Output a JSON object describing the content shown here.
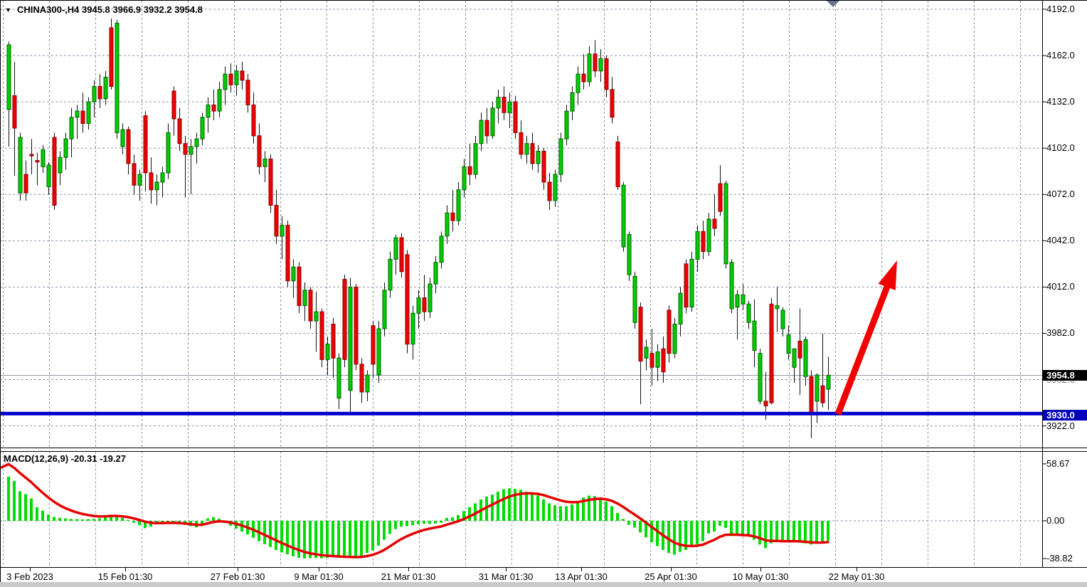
{
  "header": {
    "title_text": "CHINA300-,H4  3945.8 3966.9 3932.2 3954.8",
    "collapse_marker": "▼"
  },
  "price_axis": {
    "labels": [
      "4192.0",
      "4162.0",
      "4132.0",
      "4102.0",
      "4072.0",
      "4042.0",
      "4012.0",
      "3982.0",
      "3952.0",
      "3922.0"
    ],
    "current_price_tag": "3954.8",
    "support_price_tag": "3930.0"
  },
  "macd_panel": {
    "label": "MACD(12,26,9) -20.31 -19.27",
    "axis_labels": [
      "58.67",
      "0.00",
      "-38.82"
    ],
    "main_value": -20.31,
    "signal_value": -19.27
  },
  "time_axis": {
    "labels": [
      "3 Feb 2023",
      "15 Feb 01:30",
      "27 Feb 01:30",
      "9 Mar 01:30",
      "21 Mar 01:30",
      "31 Mar 01:30",
      "13 Apr 01:30",
      "25 Apr 01:30",
      "10 May 01:30",
      "22 May 01:30"
    ]
  },
  "colors": {
    "bull": "#00cc00",
    "bull_edge": "#006600",
    "bear": "#f20000",
    "bear_edge": "#8b0000",
    "wick": "#111111",
    "grid": "#8795aa",
    "price_line": "#8e99a3",
    "support_line": "#0000cc",
    "signal_line": "#e60000",
    "histogram": "#00dd00",
    "arrow": "#f10000",
    "tag_current_bg": "#000000",
    "tag_support_bg": "#0000bb",
    "scroll_marker": "#64748b",
    "border": "#000000"
  },
  "chart_data": {
    "type": "candlestick",
    "symbol": "CHINA300-",
    "timeframe": "H4",
    "last_ohlc": {
      "open": 3945.8,
      "high": 3966.9,
      "low": 3932.2,
      "close": 3954.8
    },
    "price_ticks": [
      4192.0,
      4162.0,
      4132.0,
      4102.0,
      4072.0,
      4042.0,
      4012.0,
      3982.0,
      3952.0,
      3922.0
    ],
    "support_level": 3930.0,
    "current_price": 3954.8,
    "annotations": {
      "support_line": "horizontal line at 3930.0",
      "arrow": "bullish projection arrow from support"
    },
    "candles": [
      [
        4127,
        4171,
        4103,
        4169,
        "g"
      ],
      [
        4136,
        4158,
        4084,
        4115,
        "r"
      ],
      [
        4073,
        4112,
        4068,
        4109,
        "g"
      ],
      [
        4085,
        4094,
        4068,
        4073,
        "r"
      ],
      [
        4098,
        4108,
        4085,
        4097,
        "r"
      ],
      [
        4094,
        4099,
        4078,
        4093,
        "r"
      ],
      [
        4090,
        4104,
        4086,
        4101,
        "g"
      ],
      [
        4077,
        4093,
        4072,
        4091,
        "g"
      ],
      [
        4109,
        4112,
        4062,
        4065,
        "r"
      ],
      [
        4086,
        4100,
        4078,
        4096,
        "g"
      ],
      [
        4096,
        4112,
        4088,
        4108,
        "g"
      ],
      [
        4108,
        4128,
        4096,
        4122,
        "g"
      ],
      [
        4122,
        4130,
        4108,
        4126,
        "g"
      ],
      [
        4126,
        4138,
        4112,
        4118,
        "r"
      ],
      [
        4118,
        4135,
        4114,
        4132,
        "g"
      ],
      [
        4132,
        4146,
        4122,
        4142,
        "g"
      ],
      [
        4142,
        4150,
        4128,
        4134,
        "r"
      ],
      [
        4134,
        4152,
        4130,
        4148,
        "g"
      ],
      [
        4180,
        4186,
        4140,
        4142,
        "r"
      ],
      [
        4112,
        4185,
        4108,
        4183,
        "g"
      ],
      [
        4103,
        4118,
        4098,
        4114,
        "g"
      ],
      [
        4114,
        4116,
        4085,
        4092,
        "r"
      ],
      [
        4092,
        4098,
        4072,
        4078,
        "r"
      ],
      [
        4078,
        4088,
        4068,
        4085,
        "g"
      ],
      [
        4123,
        4126,
        4074,
        4086,
        "r"
      ],
      [
        4086,
        4096,
        4066,
        4075,
        "r"
      ],
      [
        4075,
        4085,
        4065,
        4080,
        "g"
      ],
      [
        4080,
        4090,
        4070,
        4086,
        "g"
      ],
      [
        4086,
        4118,
        4082,
        4112,
        "g"
      ],
      [
        4139,
        4142,
        4110,
        4121,
        "r"
      ],
      [
        4121,
        4128,
        4100,
        4105,
        "r"
      ],
      [
        4105,
        4110,
        4070,
        4098,
        "r"
      ],
      [
        4098,
        4108,
        4072,
        4103,
        "g"
      ],
      [
        4103,
        4112,
        4092,
        4108,
        "g"
      ],
      [
        4108,
        4125,
        4104,
        4122,
        "g"
      ],
      [
        4122,
        4135,
        4112,
        4130,
        "g"
      ],
      [
        4130,
        4140,
        4120,
        4126,
        "r"
      ],
      [
        4126,
        4145,
        4122,
        4140,
        "g"
      ],
      [
        4140,
        4155,
        4130,
        4150,
        "g"
      ],
      [
        4150,
        4157,
        4138,
        4143,
        "r"
      ],
      [
        4143,
        4156,
        4136,
        4152,
        "g"
      ],
      [
        4152,
        4158,
        4140,
        4146,
        "r"
      ],
      [
        4146,
        4150,
        4125,
        4130,
        "r"
      ],
      [
        4130,
        4138,
        4105,
        4110,
        "r"
      ],
      [
        4110,
        4118,
        4085,
        4090,
        "r"
      ],
      [
        4090,
        4100,
        4080,
        4095,
        "g"
      ],
      [
        4095,
        4098,
        4060,
        4065,
        "r"
      ],
      [
        4065,
        4075,
        4040,
        4045,
        "r"
      ],
      [
        4045,
        4058,
        4030,
        4052,
        "g"
      ],
      [
        4052,
        4055,
        4012,
        4016,
        "r"
      ],
      [
        4016,
        4030,
        4005,
        4025,
        "g"
      ],
      [
        4025,
        4028,
        3995,
        4000,
        "r"
      ],
      [
        4000,
        4015,
        3990,
        4010,
        "g"
      ],
      [
        4010,
        4012,
        3985,
        3990,
        "r"
      ],
      [
        3990,
        4009,
        3970,
        3996,
        "g"
      ],
      [
        3996,
        3998,
        3960,
        3965,
        "r"
      ],
      [
        3965,
        3980,
        3955,
        3975,
        "g"
      ],
      [
        3988,
        3992,
        3953,
        3966,
        "r"
      ],
      [
        3940,
        3969,
        3933,
        3966,
        "g"
      ],
      [
        4017,
        4020,
        3960,
        3965,
        "r"
      ],
      [
        3945,
        4018,
        3930,
        4012,
        "g"
      ],
      [
        4012,
        4014,
        3958,
        3962,
        "r"
      ],
      [
        3962,
        3966,
        3937,
        3944,
        "r"
      ],
      [
        3944,
        3958,
        3938,
        3955,
        "g"
      ],
      [
        3987,
        3990,
        3953,
        3962,
        "r"
      ],
      [
        3955,
        3990,
        3950,
        3985,
        "g"
      ],
      [
        3985,
        4015,
        3980,
        4010,
        "g"
      ],
      [
        4010,
        4035,
        4005,
        4030,
        "g"
      ],
      [
        4030,
        4046,
        4020,
        4044,
        "g"
      ],
      [
        4044,
        4047,
        4018,
        4022,
        "r"
      ],
      [
        4033,
        4036,
        3969,
        3975,
        "r"
      ],
      [
        3975,
        4000,
        3965,
        3995,
        "g"
      ],
      [
        3995,
        4010,
        3985,
        4005,
        "g"
      ],
      [
        4005,
        4020,
        3990,
        3996,
        "r"
      ],
      [
        3996,
        4018,
        3992,
        4014,
        "g"
      ],
      [
        4014,
        4032,
        4008,
        4028,
        "g"
      ],
      [
        4028,
        4048,
        4024,
        4045,
        "g"
      ],
      [
        4045,
        4065,
        4040,
        4060,
        "g"
      ],
      [
        4060,
        4075,
        4048,
        4055,
        "r"
      ],
      [
        4055,
        4080,
        4052,
        4075,
        "g"
      ],
      [
        4075,
        4095,
        4070,
        4090,
        "g"
      ],
      [
        4090,
        4105,
        4078,
        4085,
        "r"
      ],
      [
        4085,
        4110,
        4082,
        4105,
        "g"
      ],
      [
        4105,
        4125,
        4100,
        4120,
        "g"
      ],
      [
        4120,
        4128,
        4105,
        4110,
        "r"
      ],
      [
        4110,
        4132,
        4108,
        4128,
        "g"
      ],
      [
        4128,
        4140,
        4118,
        4135,
        "g"
      ],
      [
        4135,
        4142,
        4120,
        4125,
        "r"
      ],
      [
        4125,
        4138,
        4115,
        4132,
        "g"
      ],
      [
        4132,
        4136,
        4108,
        4112,
        "r"
      ],
      [
        4112,
        4120,
        4095,
        4098,
        "r"
      ],
      [
        4098,
        4110,
        4092,
        4105,
        "g"
      ],
      [
        4105,
        4112,
        4088,
        4092,
        "r"
      ],
      [
        4092,
        4104,
        4086,
        4100,
        "g"
      ],
      [
        4100,
        4102,
        4075,
        4080,
        "r"
      ],
      [
        4080,
        4086,
        4062,
        4068,
        "r"
      ],
      [
        4068,
        4088,
        4064,
        4085,
        "g"
      ],
      [
        4085,
        4112,
        4080,
        4108,
        "g"
      ],
      [
        4108,
        4130,
        4104,
        4126,
        "g"
      ],
      [
        4126,
        4142,
        4120,
        4138,
        "g"
      ],
      [
        4138,
        4155,
        4130,
        4150,
        "g"
      ],
      [
        4150,
        4163,
        4140,
        4145,
        "r"
      ],
      [
        4145,
        4168,
        4142,
        4163,
        "g"
      ],
      [
        4163,
        4172,
        4148,
        4152,
        "r"
      ],
      [
        4152,
        4166,
        4145,
        4160,
        "g"
      ],
      [
        4160,
        4162,
        4135,
        4140,
        "r"
      ],
      [
        4140,
        4148,
        4118,
        4122,
        "r"
      ],
      [
        4106,
        4110,
        4075,
        4077,
        "r"
      ],
      [
        4038,
        4080,
        4035,
        4078,
        "g"
      ],
      [
        4020,
        4048,
        4016,
        4046,
        "g"
      ],
      [
        3989,
        4022,
        3985,
        4019,
        "g"
      ],
      [
        3999,
        4002,
        3936,
        3964,
        "r"
      ],
      [
        3966,
        3978,
        3958,
        3973,
        "g"
      ],
      [
        3969,
        3985,
        3948,
        3960,
        "r"
      ],
      [
        3960,
        3975,
        3951,
        3970,
        "g"
      ],
      [
        3972,
        3980,
        3950,
        3957,
        "r"
      ],
      [
        3997,
        4000,
        3963,
        3969,
        "r"
      ],
      [
        3969,
        3992,
        3966,
        3988,
        "g"
      ],
      [
        3988,
        4012,
        3980,
        4008,
        "g"
      ],
      [
        4027,
        4030,
        3995,
        3999,
        "r"
      ],
      [
        3999,
        4035,
        3996,
        4030,
        "g"
      ],
      [
        4030,
        4052,
        4022,
        4048,
        "g"
      ],
      [
        4048,
        4055,
        4030,
        4035,
        "r"
      ],
      [
        4035,
        4060,
        4032,
        4056,
        "g"
      ],
      [
        4056,
        4072,
        4045,
        4050,
        "r"
      ],
      [
        4079,
        4091,
        4058,
        4061,
        "r"
      ],
      [
        4027,
        4081,
        4024,
        4079,
        "g"
      ],
      [
        3998,
        4030,
        3995,
        4028,
        "g"
      ],
      [
        3999,
        4010,
        3978,
        4007,
        "g"
      ],
      [
        4001,
        4014,
        3997,
        4007,
        "g"
      ],
      [
        3989,
        4003,
        3985,
        4001,
        "g"
      ],
      [
        3971,
        4004,
        3960,
        3990,
        "g"
      ],
      [
        3938,
        3972,
        3936,
        3969,
        "g"
      ],
      [
        3935,
        3957,
        3926,
        3938,
        "r"
      ],
      [
        4001,
        4005,
        3936,
        3937,
        "r"
      ],
      [
        3998,
        4012,
        3983,
        4000,
        "g"
      ],
      [
        3985,
        3999,
        3980,
        3997,
        "g"
      ],
      [
        3969,
        3987,
        3965,
        3981,
        "g"
      ],
      [
        3960,
        3972,
        3950,
        3972,
        "g"
      ],
      [
        3977,
        3998,
        3942,
        3966,
        "r"
      ],
      [
        3954,
        3980,
        3948,
        3978,
        "g"
      ],
      [
        3954,
        3958,
        3914,
        3930,
        "r"
      ],
      [
        3938,
        3956,
        3924,
        3955,
        "g"
      ],
      [
        3948,
        3982,
        3934,
        3937,
        "r"
      ],
      [
        3945.8,
        3966.9,
        3932.2,
        3954.8,
        "g"
      ]
    ],
    "macd": {
      "parameters": "12,26,9",
      "histogram": [
        45.5,
        41,
        30.5,
        27.5,
        23,
        14,
        10.5,
        6.5,
        4,
        3,
        2.5,
        2,
        1.8,
        1.5,
        1.8,
        2,
        2.5,
        5.5,
        6,
        5.2,
        3,
        1,
        -2,
        -4.5,
        -7.5,
        -6,
        -3.5,
        -2,
        -1.5,
        -2.2,
        -3,
        -4.2,
        -5.5,
        -6.8,
        -4,
        2.5,
        3.8,
        2.2,
        -2,
        -5,
        -8,
        -11,
        -14,
        -17.5,
        -21,
        -24,
        -27,
        -30,
        -32.5,
        -34.5,
        -36.5,
        -38,
        -38.8,
        -38.5,
        -38.2,
        -38.5,
        -38,
        -37.5,
        -38,
        -38.3,
        -37.8,
        -38,
        -36.5,
        -33,
        -30.5,
        -25.5,
        -19.5,
        -13.5,
        -8.5,
        -6,
        -5.5,
        -4.5,
        -3.5,
        -3,
        -3.2,
        -2.8,
        -2,
        3,
        3.5,
        6,
        10,
        14,
        18,
        22,
        25,
        27,
        30,
        32.5,
        33.5,
        33,
        32,
        30,
        28,
        26,
        22,
        18,
        16,
        15,
        15,
        17,
        20,
        24,
        26,
        25.5,
        24,
        20,
        15,
        8,
        2,
        -4,
        -7,
        -12,
        -17,
        -22,
        -26,
        -30,
        -33,
        -35,
        -32,
        -30,
        -27,
        -24,
        -21,
        -13,
        -11,
        -5,
        -7.3,
        -13.4,
        -14.6,
        -15.9,
        -15.9,
        -19.5,
        -24.4,
        -28,
        -23.2,
        -20.7,
        -22,
        -20.7,
        -20.7,
        -22,
        -23.2,
        -24.4,
        -23.2,
        -22,
        -20.31
      ],
      "histogram_last": -20.31,
      "signal_last": -19.27,
      "axis_max": 58.67,
      "axis_min": -38.82
    }
  }
}
